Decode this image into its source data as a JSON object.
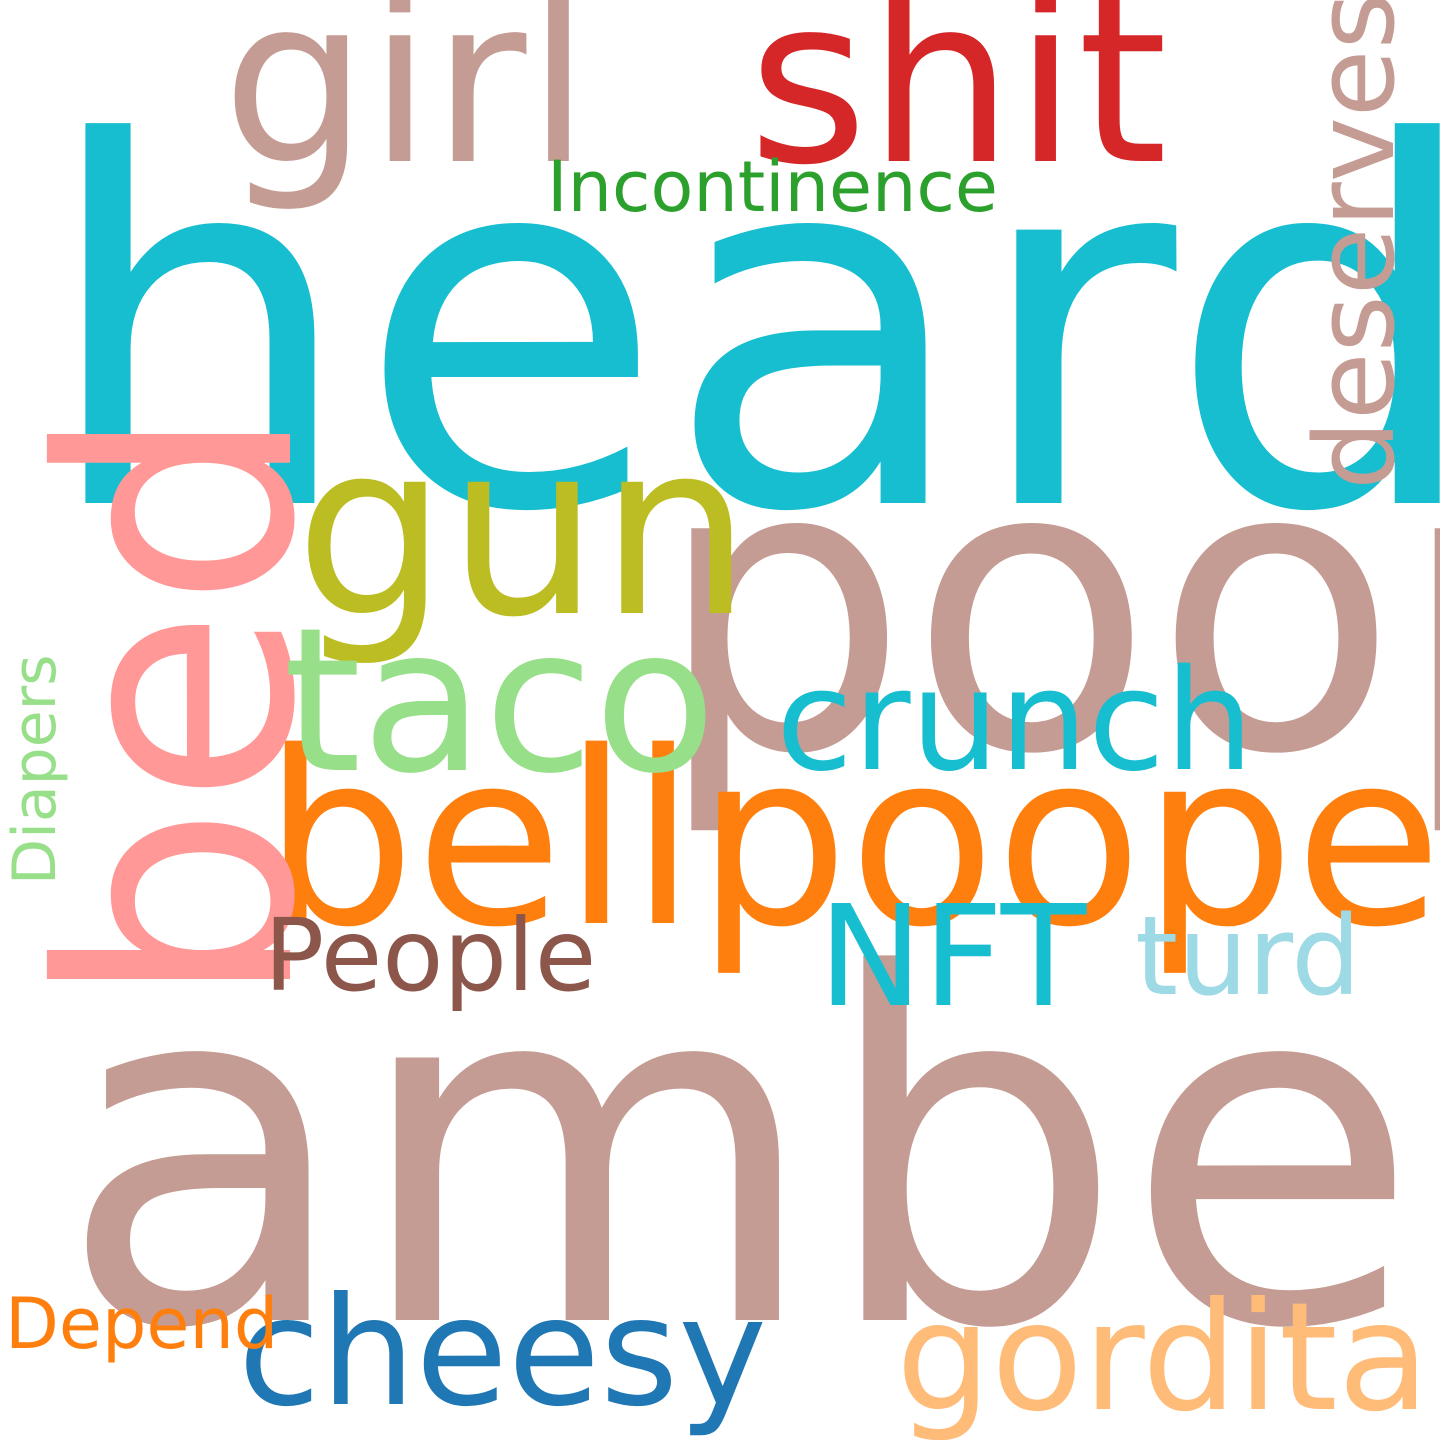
{
  "wordcloud": {
    "words": [
      {
        "text": "heard",
        "color": "#17becf",
        "orientation": "horizontal"
      },
      {
        "text": "amber",
        "color": "#c49c94",
        "orientation": "horizontal"
      },
      {
        "text": "poop",
        "color": "#c49c94",
        "orientation": "horizontal"
      },
      {
        "text": "bellpooped",
        "color": "#ff7f0e",
        "orientation": "horizontal"
      },
      {
        "text": "bed",
        "color": "#ff9896",
        "orientation": "vertical"
      },
      {
        "text": "girl",
        "color": "#c49c94",
        "orientation": "horizontal"
      },
      {
        "text": "shit",
        "color": "#d62728",
        "orientation": "horizontal"
      },
      {
        "text": "gun",
        "color": "#bcbd22",
        "orientation": "horizontal"
      },
      {
        "text": "taco",
        "color": "#98df8a",
        "orientation": "horizontal"
      },
      {
        "text": "crunch",
        "color": "#17becf",
        "orientation": "horizontal"
      },
      {
        "text": "deserves",
        "color": "#c49c94",
        "orientation": "vertical"
      },
      {
        "text": "Incontinence",
        "color": "#2ca02c",
        "orientation": "horizontal"
      },
      {
        "text": "NFT",
        "color": "#17becf",
        "orientation": "horizontal"
      },
      {
        "text": "People",
        "color": "#8c564b",
        "orientation": "horizontal"
      },
      {
        "text": "turd",
        "color": "#9edae5",
        "orientation": "horizontal"
      },
      {
        "text": "Diapers",
        "color": "#98df8a",
        "orientation": "vertical"
      },
      {
        "text": "cheesy",
        "color": "#1f77b4",
        "orientation": "horizontal"
      },
      {
        "text": "gordita",
        "color": "#ffbb78",
        "orientation": "horizontal"
      },
      {
        "text": "Depend",
        "color": "#ff7f0e",
        "orientation": "horizontal"
      }
    ]
  }
}
